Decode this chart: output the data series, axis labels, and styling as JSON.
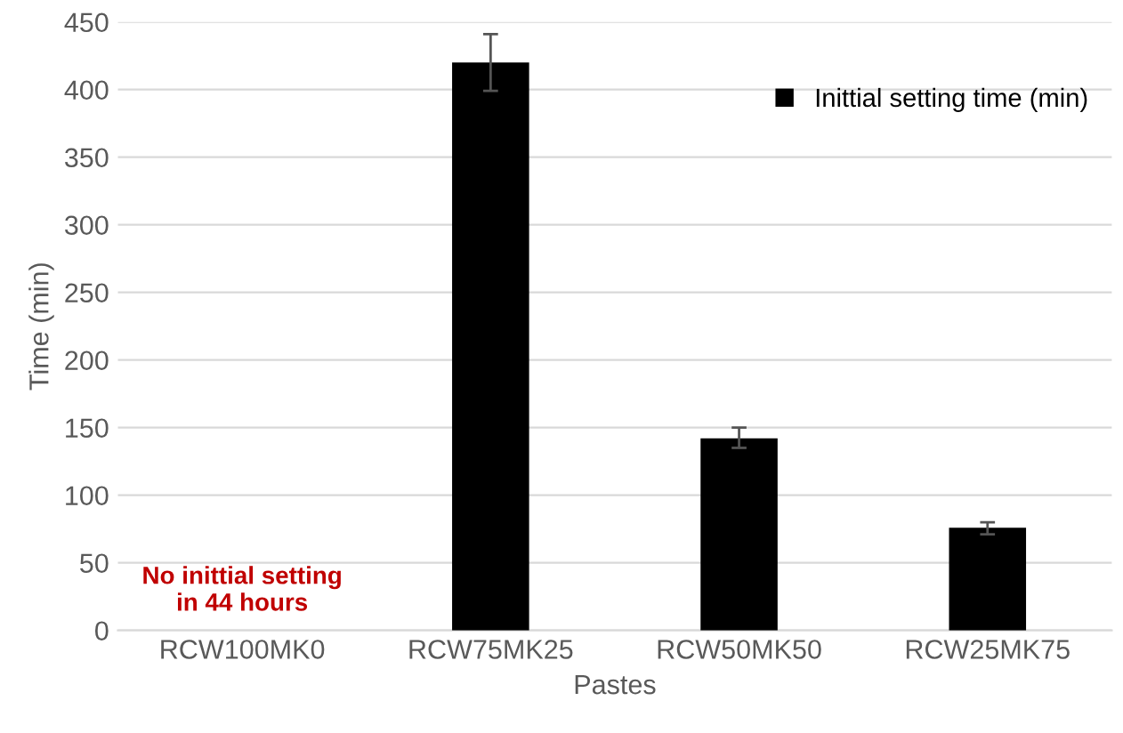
{
  "chart_data": {
    "type": "bar",
    "xlabel": "Pastes",
    "ylabel": "Time (min)",
    "categories": [
      "RCW100MK0",
      "RCW75MK25",
      "RCW50MK50",
      "RCW25MK75"
    ],
    "series": [
      {
        "name": "Inittial setting time (min)",
        "color": "#000000",
        "values": [
          null,
          420,
          142,
          76
        ],
        "errors": [
          null,
          [
            399,
            441
          ],
          [
            135,
            150
          ],
          [
            71,
            80
          ]
        ]
      }
    ],
    "ylim": [
      0,
      450
    ],
    "yticks": [
      0,
      50,
      100,
      150,
      200,
      250,
      300,
      350,
      400,
      450
    ],
    "grid": "y",
    "legend": "top right",
    "annotations": [
      "No inittial setting\nin 44 hours"
    ]
  }
}
